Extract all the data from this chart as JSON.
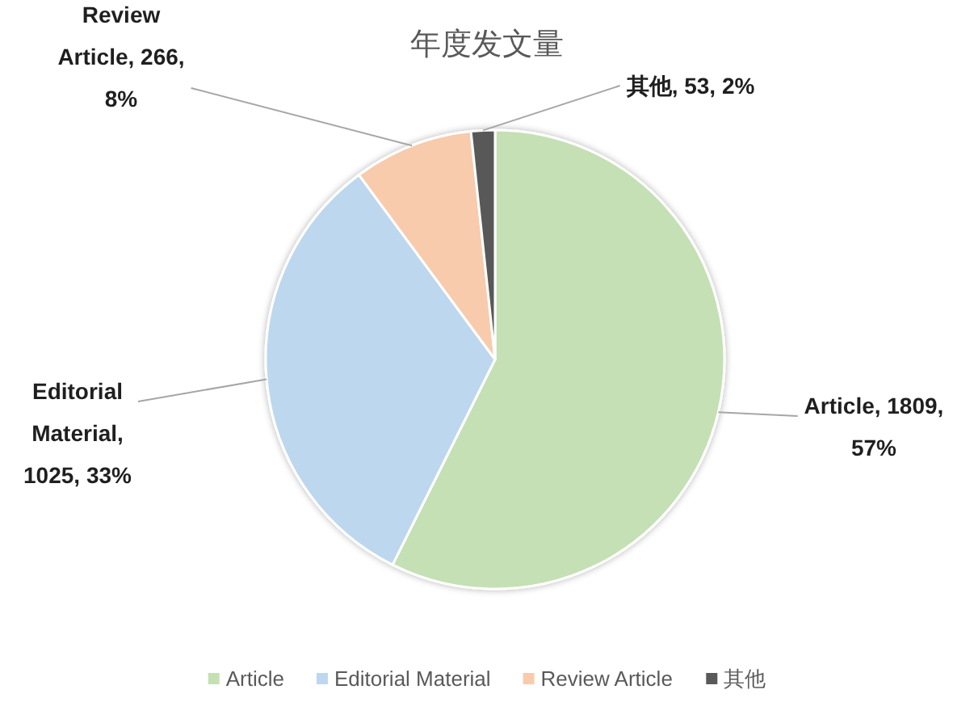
{
  "chart_data": {
    "type": "pie",
    "title": "年度发文量",
    "categories": [
      "Article",
      "Editorial Material",
      "Review Article",
      "其他"
    ],
    "values": [
      1809,
      1025,
      266,
      53
    ],
    "colors": [
      "#c5e0b4",
      "#bdd7ee",
      "#f8cbad",
      "#595959"
    ],
    "value_labels": [
      "Article, 1809, 57%",
      "Editorial Material, 1025, 33%",
      "Review Article, 266, 8%",
      "其他, 53, 2%"
    ],
    "legend": "bottom"
  }
}
